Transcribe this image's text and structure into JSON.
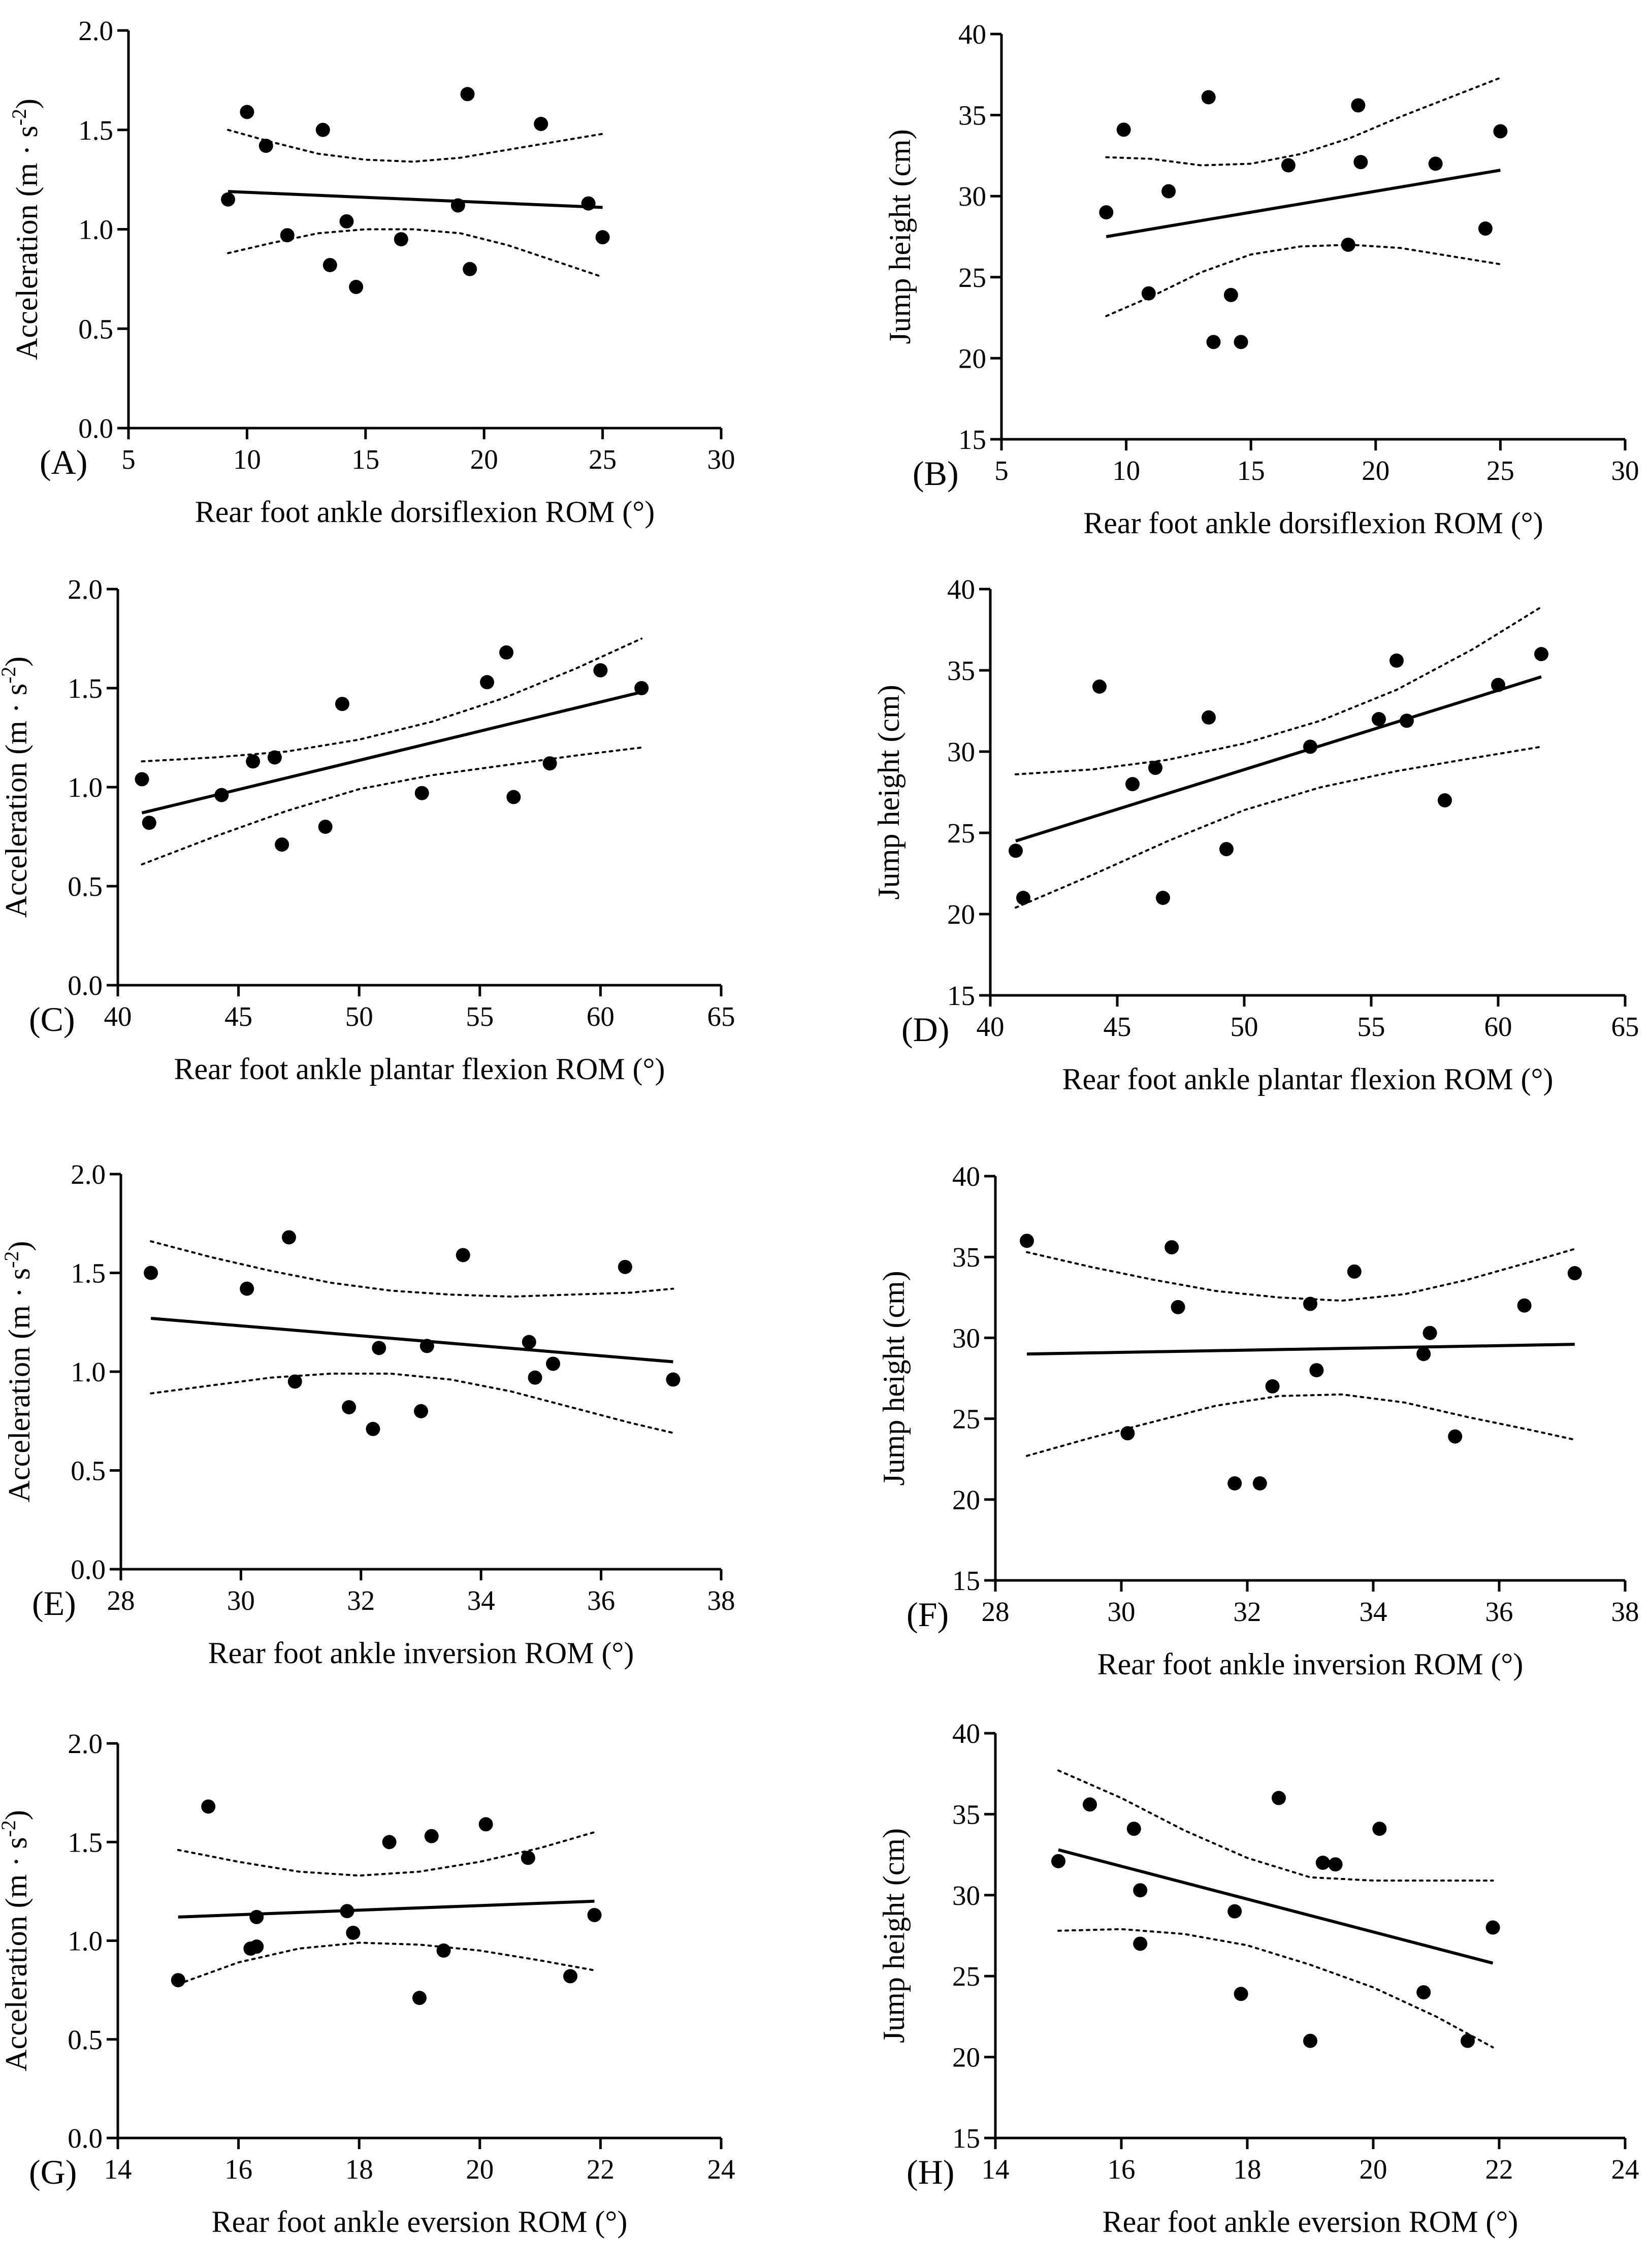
{
  "chart_data": [
    {
      "type": "scatter",
      "panel_label": "(A)",
      "xlabel": "Rear foot ankle dorsiflexion ROM (°)",
      "ylabel": "Acceleration (m · s",
      "ylabel_sup": "-2",
      "ylabel_close": ")",
      "xlim": [
        5,
        30
      ],
      "xticks": [
        5,
        10,
        15,
        20,
        25,
        30
      ],
      "xtick_labels": [
        "5",
        "10",
        "15",
        "20",
        "25",
        "30"
      ],
      "ylim": [
        0,
        2
      ],
      "yticks": [
        0,
        0.5,
        1,
        1.5,
        2
      ],
      "ytick_labels": [
        "0.0",
        "0.5",
        "1.0",
        "1.5",
        "2.0"
      ],
      "x": [
        9.2,
        10,
        10.8,
        11.7,
        13.2,
        13.5,
        14.2,
        14.6,
        16.5,
        18.9,
        19.3,
        19.4,
        22.4,
        24.4,
        25.0
      ],
      "y": [
        1.15,
        1.59,
        1.42,
        0.97,
        1.5,
        0.82,
        1.04,
        0.71,
        0.95,
        1.12,
        1.68,
        0.8,
        1.53,
        1.13,
        0.96
      ],
      "fit": {
        "x": [
          9.2,
          25.0
        ],
        "y": [
          1.19,
          1.11
        ]
      },
      "ci_upper": {
        "x": [
          9.2,
          11,
          13,
          15,
          17,
          19,
          21,
          23,
          25
        ],
        "y": [
          1.5,
          1.44,
          1.38,
          1.35,
          1.34,
          1.36,
          1.4,
          1.44,
          1.48
        ]
      },
      "ci_lower": {
        "x": [
          9.2,
          11,
          13,
          15,
          17,
          19,
          21,
          23,
          25
        ],
        "y": [
          0.88,
          0.93,
          0.98,
          1.0,
          1.0,
          0.98,
          0.92,
          0.84,
          0.76
        ]
      }
    },
    {
      "type": "scatter",
      "panel_label": "(B)",
      "xlabel": "Rear foot ankle dorsiflexion ROM (°)",
      "ylabel": "Jump height (cm)",
      "xlim": [
        5,
        30
      ],
      "xticks": [
        5,
        10,
        15,
        20,
        25,
        30
      ],
      "xtick_labels": [
        "5",
        "10",
        "15",
        "20",
        "25",
        "30"
      ],
      "ylim": [
        15,
        40
      ],
      "yticks": [
        15,
        20,
        25,
        30,
        35,
        40
      ],
      "ytick_labels": [
        "15",
        "20",
        "25",
        "30",
        "35",
        "40"
      ],
      "x": [
        9.2,
        9.9,
        10.9,
        11.7,
        13.3,
        13.5,
        14.2,
        14.6,
        16.5,
        18.9,
        19.3,
        19.4,
        22.4,
        24.4,
        25.0
      ],
      "y": [
        29,
        34.1,
        24,
        30.3,
        36.1,
        21,
        23.9,
        21,
        31.9,
        27,
        35.6,
        32.1,
        32,
        28,
        34
      ],
      "fit": {
        "x": [
          9.2,
          25.0
        ],
        "y": [
          27.5,
          31.6
        ]
      },
      "ci_upper": {
        "x": [
          9.2,
          11,
          13,
          15,
          17,
          19,
          21,
          23,
          25
        ],
        "y": [
          32.4,
          32.3,
          31.9,
          32.0,
          32.6,
          33.6,
          34.9,
          36.1,
          37.3
        ]
      },
      "ci_lower": {
        "x": [
          9.2,
          11,
          13,
          15,
          17,
          19,
          21,
          23,
          25
        ],
        "y": [
          22.6,
          23.8,
          25.3,
          26.4,
          26.9,
          27.0,
          26.8,
          26.3,
          25.8
        ]
      }
    },
    {
      "type": "scatter",
      "panel_label": "(C)",
      "xlabel": "Rear foot ankle plantar flexion ROM (°)",
      "ylabel": "Acceleration (m · s",
      "ylabel_sup": "-2",
      "ylabel_close": ")",
      "xlim": [
        40,
        65
      ],
      "xticks": [
        40,
        45,
        50,
        55,
        60,
        65
      ],
      "xtick_labels": [
        "40",
        "45",
        "50",
        "55",
        "60",
        "65"
      ],
      "ylim": [
        0,
        2
      ],
      "yticks": [
        0,
        0.5,
        1,
        1.5,
        2
      ],
      "ytick_labels": [
        "0.0",
        "0.5",
        "1.0",
        "1.5",
        "2.0"
      ],
      "x": [
        41.0,
        41.3,
        44.3,
        45.6,
        46.5,
        46.8,
        48.6,
        49.3,
        52.6,
        55.3,
        56.1,
        56.4,
        57.9,
        60.0,
        61.7
      ],
      "y": [
        1.04,
        0.82,
        0.96,
        1.13,
        1.15,
        0.71,
        0.8,
        1.42,
        0.97,
        1.53,
        1.68,
        0.95,
        1.12,
        1.59,
        1.5
      ],
      "fit": {
        "x": [
          41.0,
          61.7
        ],
        "y": [
          0.87,
          1.48
        ]
      },
      "ci_upper": {
        "x": [
          41.0,
          44,
          47,
          50,
          53,
          56,
          59,
          61.7
        ],
        "y": [
          1.13,
          1.15,
          1.18,
          1.24,
          1.33,
          1.45,
          1.6,
          1.75
        ]
      },
      "ci_lower": {
        "x": [
          41.0,
          44,
          47,
          50,
          53,
          56,
          59,
          61.7
        ],
        "y": [
          0.61,
          0.75,
          0.88,
          0.99,
          1.06,
          1.11,
          1.16,
          1.2
        ]
      }
    },
    {
      "type": "scatter",
      "panel_label": "(D)",
      "xlabel": "Rear foot ankle plantar flexion ROM (°)",
      "ylabel": "Jump height (cm)",
      "xlim": [
        40,
        65
      ],
      "xticks": [
        40,
        45,
        50,
        55,
        60,
        65
      ],
      "xtick_labels": [
        "40",
        "45",
        "50",
        "55",
        "60",
        "65"
      ],
      "ylim": [
        15,
        40
      ],
      "yticks": [
        15,
        20,
        25,
        30,
        35,
        40
      ],
      "ytick_labels": [
        "15",
        "20",
        "25",
        "30",
        "35",
        "40"
      ],
      "x": [
        41.0,
        41.3,
        44.3,
        45.6,
        46.5,
        46.8,
        48.6,
        49.3,
        52.6,
        55.3,
        56.0,
        56.4,
        57.9,
        60.0,
        61.7
      ],
      "y": [
        23.9,
        21,
        34,
        28,
        29,
        21,
        32.1,
        24,
        30.3,
        32,
        35.6,
        31.9,
        27,
        34.1,
        36
      ],
      "fit": {
        "x": [
          41.0,
          61.7
        ],
        "y": [
          24.5,
          34.6
        ]
      },
      "ci_upper": {
        "x": [
          41.0,
          44,
          47,
          50,
          53,
          56,
          59,
          61.7
        ],
        "y": [
          28.6,
          28.9,
          29.5,
          30.5,
          31.9,
          33.8,
          36.3,
          38.9
        ]
      },
      "ci_lower": {
        "x": [
          41.0,
          44,
          47,
          50,
          53,
          56,
          59,
          61.7
        ],
        "y": [
          20.4,
          22.4,
          24.5,
          26.4,
          27.8,
          28.8,
          29.6,
          30.3
        ]
      }
    },
    {
      "type": "scatter",
      "panel_label": "(E)",
      "xlabel": "Rear foot ankle inversion ROM (°)",
      "ylabel": "Acceleration (m · s",
      "ylabel_sup": "-2",
      "ylabel_close": ")",
      "xlim": [
        28,
        38
      ],
      "xticks": [
        28,
        30,
        32,
        34,
        36,
        38
      ],
      "xtick_labels": [
        "28",
        "30",
        "32",
        "34",
        "36",
        "38"
      ],
      "ylim": [
        0,
        2
      ],
      "yticks": [
        0,
        0.5,
        1,
        1.5,
        2
      ],
      "ytick_labels": [
        "0.0",
        "0.5",
        "1.0",
        "1.5",
        "2.0"
      ],
      "x": [
        28.5,
        30.1,
        30.8,
        30.9,
        31.8,
        32.2,
        32.3,
        33.0,
        33.1,
        33.7,
        34.8,
        34.9,
        35.2,
        36.4,
        37.2
      ],
      "y": [
        1.5,
        1.42,
        1.68,
        0.95,
        0.82,
        0.71,
        1.12,
        0.8,
        1.13,
        1.59,
        1.15,
        0.97,
        1.04,
        1.53,
        0.96
      ],
      "fit": {
        "x": [
          28.5,
          37.2
        ],
        "y": [
          1.27,
          1.05
        ]
      },
      "ci_upper": {
        "x": [
          28.5,
          29.5,
          30.5,
          31.5,
          32.5,
          33.5,
          34.5,
          35.5,
          36.5,
          37.2
        ],
        "y": [
          1.66,
          1.58,
          1.51,
          1.45,
          1.41,
          1.39,
          1.38,
          1.39,
          1.4,
          1.42
        ]
      },
      "ci_lower": {
        "x": [
          28.5,
          29.5,
          30.5,
          31.5,
          32.5,
          33.5,
          34.5,
          35.5,
          36.5,
          37.2
        ],
        "y": [
          0.89,
          0.93,
          0.97,
          0.99,
          0.99,
          0.96,
          0.9,
          0.82,
          0.74,
          0.69
        ]
      }
    },
    {
      "type": "scatter",
      "panel_label": "(F)",
      "xlabel": "Rear foot ankle inversion ROM (°)",
      "ylabel": "Jump height (cm)",
      "xlim": [
        28,
        38
      ],
      "xticks": [
        28,
        30,
        32,
        34,
        36,
        38
      ],
      "xtick_labels": [
        "28",
        "30",
        "32",
        "34",
        "36",
        "38"
      ],
      "ylim": [
        15,
        40
      ],
      "yticks": [
        15,
        20,
        25,
        30,
        35,
        40
      ],
      "ytick_labels": [
        "15",
        "20",
        "25",
        "30",
        "35",
        "40"
      ],
      "x": [
        28.5,
        30.1,
        30.8,
        30.9,
        31.8,
        32.2,
        32.4,
        33.0,
        33.1,
        33.7,
        34.8,
        34.9,
        35.3,
        36.4,
        37.2
      ],
      "y": [
        36,
        24.1,
        35.6,
        31.9,
        21,
        21,
        27,
        32.1,
        28,
        34.1,
        29,
        30.3,
        23.9,
        32,
        34
      ],
      "fit": {
        "x": [
          28.5,
          37.2
        ],
        "y": [
          29.0,
          29.6
        ]
      },
      "ci_upper": {
        "x": [
          28.5,
          29.5,
          30.5,
          31.5,
          32.5,
          33.5,
          34.5,
          35.5,
          36.5,
          37.2
        ],
        "y": [
          35.3,
          34.4,
          33.6,
          32.9,
          32.5,
          32.3,
          32.7,
          33.6,
          34.7,
          35.5
        ]
      },
      "ci_lower": {
        "x": [
          28.5,
          29.5,
          30.5,
          31.5,
          32.5,
          33.5,
          34.5,
          35.5,
          36.5,
          37.2
        ],
        "y": [
          22.7,
          23.8,
          24.8,
          25.8,
          26.4,
          26.5,
          26.0,
          25.1,
          24.3,
          23.7
        ]
      }
    },
    {
      "type": "scatter",
      "panel_label": "(G)",
      "xlabel": "Rear foot ankle eversion ROM (°)",
      "ylabel": "Acceleration (m · s",
      "ylabel_sup": "-2",
      "ylabel_close": ")",
      "xlim": [
        14,
        24
      ],
      "xticks": [
        14,
        16,
        18,
        20,
        22,
        24
      ],
      "xtick_labels": [
        "14",
        "16",
        "18",
        "20",
        "22",
        "24"
      ],
      "ylim": [
        0,
        2
      ],
      "yticks": [
        0,
        0.5,
        1,
        1.5,
        2
      ],
      "ytick_labels": [
        "0.0",
        "0.5",
        "1.0",
        "1.5",
        "2.0"
      ],
      "x": [
        15.0,
        15.5,
        16.2,
        16.3,
        16.3,
        17.8,
        17.9,
        18.5,
        19.0,
        19.2,
        19.4,
        20.1,
        20.8,
        21.5,
        21.9
      ],
      "y": [
        0.8,
        1.68,
        0.96,
        0.97,
        1.12,
        1.15,
        1.04,
        1.5,
        0.71,
        1.53,
        0.95,
        1.59,
        1.42,
        0.82,
        1.13
      ],
      "fit": {
        "x": [
          15.0,
          21.9
        ],
        "y": [
          1.12,
          1.2
        ]
      },
      "ci_upper": {
        "x": [
          15.0,
          16,
          17,
          18,
          19,
          20,
          21,
          21.9
        ],
        "y": [
          1.46,
          1.4,
          1.35,
          1.33,
          1.35,
          1.4,
          1.47,
          1.55
        ]
      },
      "ci_lower": {
        "x": [
          15.0,
          16,
          17,
          18,
          19,
          20,
          21,
          21.9
        ],
        "y": [
          0.78,
          0.89,
          0.96,
          0.99,
          0.98,
          0.95,
          0.9,
          0.85
        ]
      }
    },
    {
      "type": "scatter",
      "panel_label": "(H)",
      "xlabel": "Rear foot ankle eversion ROM (°)",
      "ylabel": "Jump height (cm)",
      "xlim": [
        14,
        24
      ],
      "xticks": [
        14,
        16,
        18,
        20,
        22,
        24
      ],
      "xtick_labels": [
        "14",
        "16",
        "18",
        "20",
        "22",
        "24"
      ],
      "ylim": [
        15,
        40
      ],
      "yticks": [
        15,
        20,
        25,
        30,
        35,
        40
      ],
      "ytick_labels": [
        "15",
        "20",
        "25",
        "30",
        "35",
        "40"
      ],
      "x": [
        15.0,
        15.5,
        16.2,
        16.3,
        16.3,
        17.8,
        17.9,
        18.5,
        19.0,
        19.2,
        19.4,
        20.1,
        20.8,
        21.5,
        21.9
      ],
      "y": [
        32.1,
        35.6,
        34.1,
        30.3,
        27,
        29,
        23.9,
        36,
        21,
        32,
        31.9,
        34.1,
        24,
        21,
        28
      ],
      "fit": {
        "x": [
          15.0,
          21.9
        ],
        "y": [
          32.8,
          25.8
        ]
      },
      "ci_upper": {
        "x": [
          15.0,
          16,
          17,
          18,
          19,
          20,
          21,
          21.9
        ],
        "y": [
          37.7,
          36.0,
          34.0,
          32.3,
          31.1,
          30.9,
          30.9,
          30.9
        ]
      },
      "ci_lower": {
        "x": [
          15.0,
          16,
          17,
          18,
          19,
          20,
          21,
          21.9
        ],
        "y": [
          27.8,
          27.9,
          27.6,
          26.9,
          25.7,
          24.3,
          22.5,
          20.6
        ]
      }
    }
  ]
}
